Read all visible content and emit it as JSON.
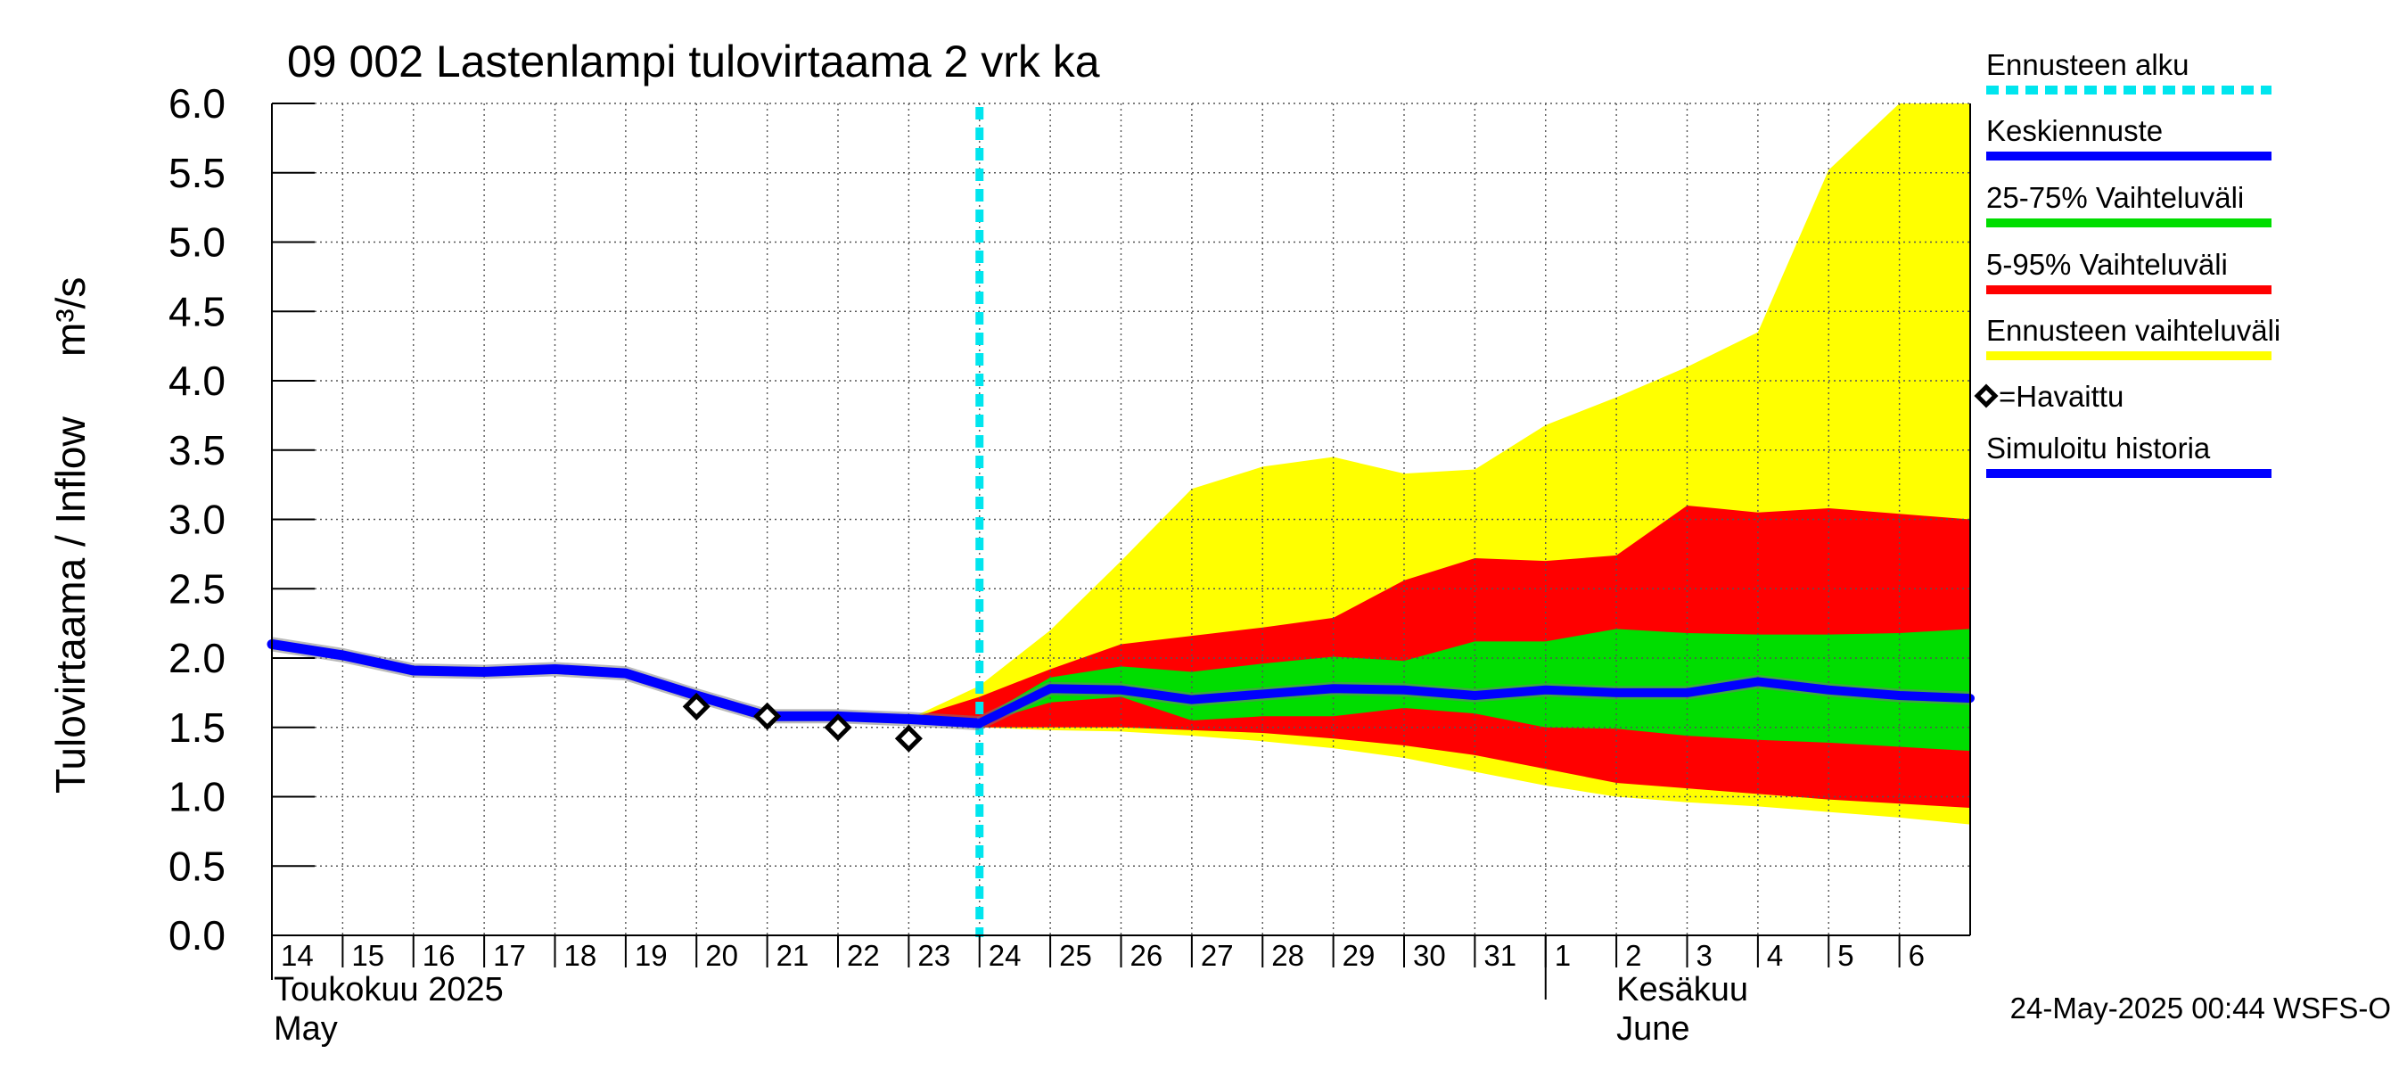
{
  "chart_data": {
    "type": "area",
    "title": "09 002 Lastenlampi tulovirtaama 2 vrk ka",
    "ylabel": "Tulovirtaama / Inflow",
    "yunit": "m³/s",
    "ylim": [
      0,
      6
    ],
    "yticks": [
      "0.0",
      "0.5",
      "1.0",
      "1.5",
      "2.0",
      "2.5",
      "3.0",
      "3.5",
      "4.0",
      "4.5",
      "5.0",
      "5.5",
      "6.0"
    ],
    "grid": true,
    "x_day_labels": [
      "14",
      "15",
      "16",
      "17",
      "18",
      "19",
      "20",
      "21",
      "22",
      "23",
      "24",
      "25",
      "26",
      "27",
      "28",
      "29",
      "30",
      "31",
      "1",
      "2",
      "3",
      "4",
      "5",
      "6"
    ],
    "x_range_days": [
      0,
      24
    ],
    "month_labels": [
      {
        "fi": "Toukokuu  2025",
        "en": "May",
        "day": 0
      },
      {
        "fi": "Kesäkuu",
        "en": "June",
        "day": 19
      }
    ],
    "month_divider_day": 18,
    "forecast_start_day": 10,
    "series": {
      "ennusteen_vaihteluvali": {
        "name": "Ennusteen vaihteluväli",
        "color": "#ffff00",
        "x": [
          9,
          10,
          11,
          12,
          13,
          14,
          15,
          16,
          17,
          18,
          19,
          20,
          21,
          22,
          23,
          24
        ],
        "upper": [
          1.56,
          1.8,
          2.2,
          2.7,
          3.22,
          3.38,
          3.45,
          3.33,
          3.36,
          3.68,
          3.88,
          4.1,
          4.35,
          5.52,
          6.0,
          6.0
        ],
        "lower": [
          1.56,
          1.5,
          1.48,
          1.47,
          1.44,
          1.4,
          1.35,
          1.28,
          1.18,
          1.08,
          1.0,
          0.96,
          0.93,
          0.89,
          0.85,
          0.8
        ]
      },
      "vaihteluvali_5_95": {
        "name": "5-95% Vaihteluväli",
        "color": "#ff0000",
        "x": [
          9,
          10,
          11,
          12,
          13,
          14,
          15,
          16,
          17,
          18,
          19,
          20,
          21,
          22,
          23,
          24
        ],
        "upper": [
          1.56,
          1.72,
          1.92,
          2.1,
          2.16,
          2.22,
          2.29,
          2.56,
          2.72,
          2.7,
          2.74,
          3.1,
          3.05,
          3.08,
          3.04,
          3.0
        ],
        "lower": [
          1.56,
          1.5,
          1.5,
          1.5,
          1.48,
          1.46,
          1.42,
          1.37,
          1.3,
          1.2,
          1.1,
          1.06,
          1.02,
          0.98,
          0.95,
          0.92
        ]
      },
      "vaihteluvali_25_75": {
        "name": "25-75% Vaihteluväli",
        "color": "#00dd00",
        "x": [
          10,
          11,
          12,
          13,
          14,
          15,
          16,
          17,
          18,
          19,
          20,
          21,
          22,
          23,
          24
        ],
        "upper": [
          1.56,
          1.86,
          1.94,
          1.9,
          1.96,
          2.01,
          1.98,
          2.12,
          2.12,
          2.21,
          2.18,
          2.17,
          2.17,
          2.18,
          2.21
        ],
        "lower": [
          1.53,
          1.68,
          1.72,
          1.55,
          1.58,
          1.58,
          1.64,
          1.6,
          1.5,
          1.49,
          1.44,
          1.41,
          1.39,
          1.36,
          1.33
        ]
      },
      "keskiennuste": {
        "name": "Keskiennuste",
        "color": "#0000ff",
        "x": [
          10,
          11,
          12,
          13,
          14,
          15,
          16,
          17,
          18,
          19,
          20,
          21,
          22,
          23,
          24
        ],
        "values": [
          1.53,
          1.78,
          1.77,
          1.7,
          1.74,
          1.78,
          1.77,
          1.73,
          1.77,
          1.75,
          1.75,
          1.83,
          1.77,
          1.73,
          1.71
        ]
      },
      "simuloitu_historia": {
        "name": "Simuloitu historia",
        "color": "#0000ff",
        "x": [
          0,
          1,
          2,
          3,
          4,
          5,
          6,
          7,
          8,
          9,
          10
        ],
        "values": [
          2.1,
          2.02,
          1.91,
          1.9,
          1.92,
          1.89,
          1.73,
          1.58,
          1.58,
          1.56,
          1.53
        ]
      },
      "havaittu": {
        "name": "=Havaittu",
        "x": [
          6,
          7,
          8,
          9
        ],
        "values": [
          1.65,
          1.58,
          1.5,
          1.42
        ]
      }
    },
    "legend": [
      {
        "label": "Ennusteen alku",
        "color": "#00e5ee",
        "style": "dashed"
      },
      {
        "label": "Keskiennuste",
        "color": "#0000ff",
        "style": "line"
      },
      {
        "label": "25-75% Vaihteluväli",
        "color": "#00dd00",
        "style": "line"
      },
      {
        "label": "5-95% Vaihteluväli",
        "color": "#ff0000",
        "style": "line"
      },
      {
        "label": "Ennusteen vaihteluväli",
        "color": "#ffff00",
        "style": "line"
      },
      {
        "label": "=Havaittu",
        "color": "#000000",
        "style": "diamond"
      },
      {
        "label": "Simuloitu historia",
        "color": "#0000ff",
        "style": "line"
      }
    ],
    "legend_position": "right",
    "timestamp": "24-May-2025 00:44 WSFS-O"
  }
}
